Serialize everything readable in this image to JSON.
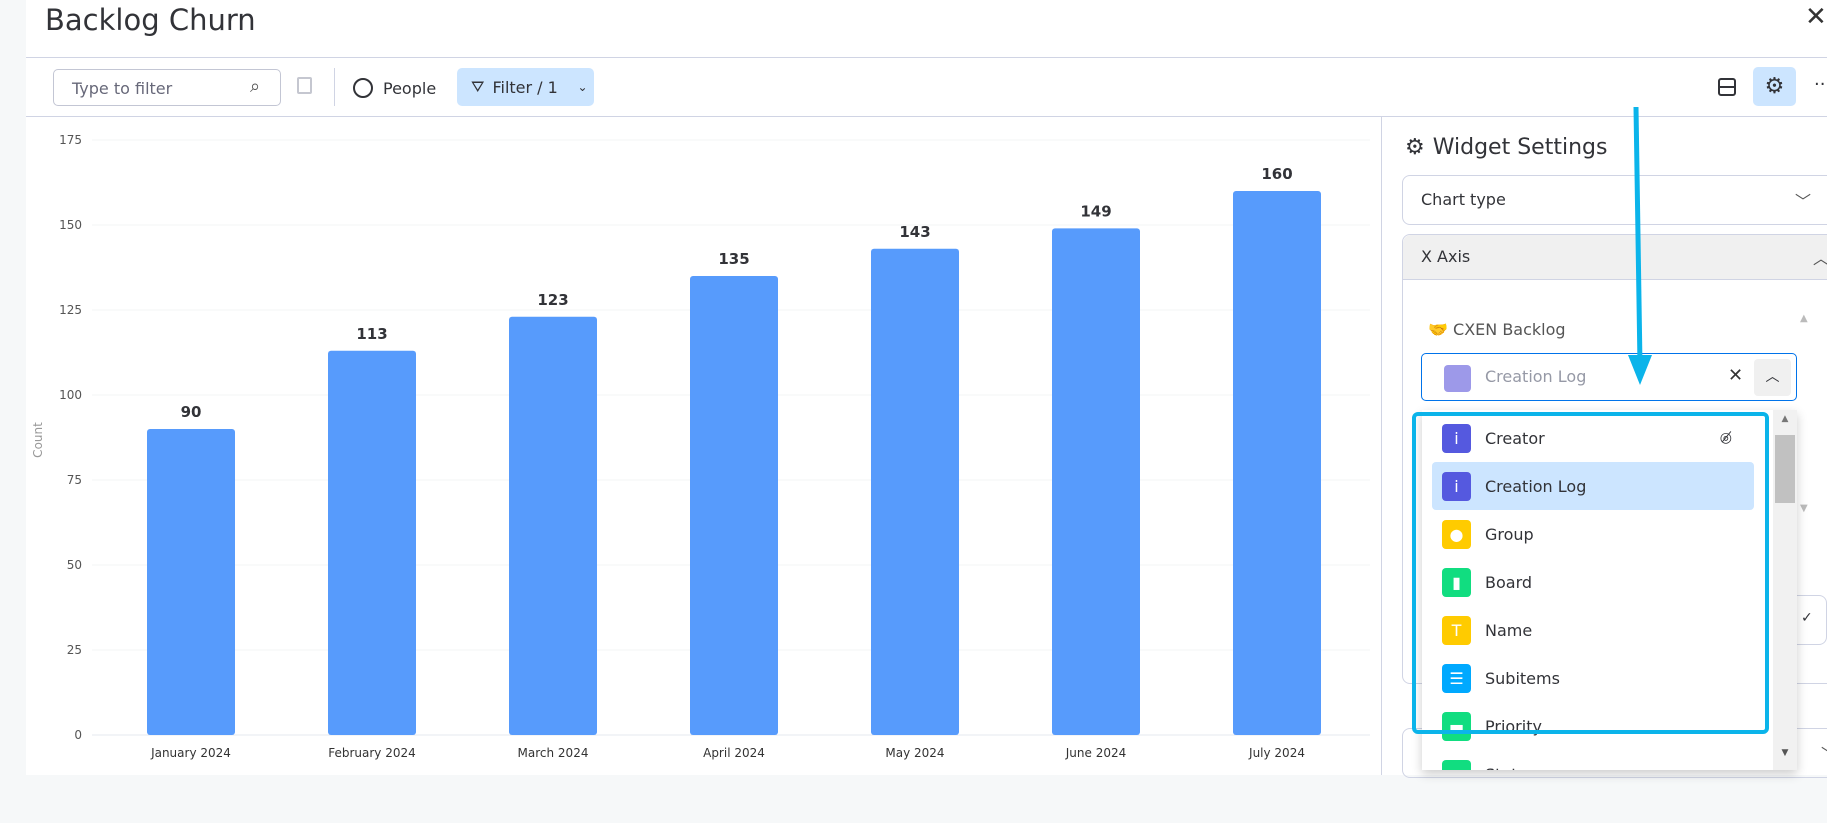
{
  "header": {
    "title": "Backlog Churn"
  },
  "toolbar": {
    "filter_placeholder": "Type to filter",
    "people_label": "People",
    "filter_label": "Filter / 1"
  },
  "settings": {
    "title": "Widget Settings",
    "chart_type_label": "Chart type",
    "x_axis_label": "X Axis",
    "board_name": "CXEN Backlog",
    "selected_column": "Creation Log",
    "options": [
      {
        "label": "Creator",
        "icon": "info-icon",
        "color": "#5559df",
        "hidden": true
      },
      {
        "label": "Creation Log",
        "icon": "info-icon",
        "color": "#5559df",
        "selected": true
      },
      {
        "label": "Group",
        "icon": "circle-icon",
        "color": "#ffcb00"
      },
      {
        "label": "Board",
        "icon": "board-icon",
        "color": "#11dd80"
      },
      {
        "label": "Name",
        "icon": "text-icon",
        "color": "#ffcb00"
      },
      {
        "label": "Subitems",
        "icon": "subitems-icon",
        "color": "#00a9ff"
      },
      {
        "label": "Priority",
        "icon": "status-icon",
        "color": "#11dd80"
      },
      {
        "label": "Status",
        "icon": "status-icon",
        "color": "#11dd80"
      }
    ]
  },
  "colors": {
    "bar": "#579bfc",
    "accent": "#0bb4ea",
    "highlight": "#cce5ff"
  },
  "chart_data": {
    "type": "bar",
    "categories": [
      "January 2024",
      "February 2024",
      "March 2024",
      "April 2024",
      "May 2024",
      "June 2024",
      "July 2024"
    ],
    "values": [
      90,
      113,
      123,
      135,
      143,
      149,
      160
    ],
    "ylabel": "Count",
    "ylim": [
      0,
      175
    ],
    "yticks": [
      0,
      25,
      50,
      75,
      100,
      125,
      150,
      175
    ],
    "grid": true
  }
}
